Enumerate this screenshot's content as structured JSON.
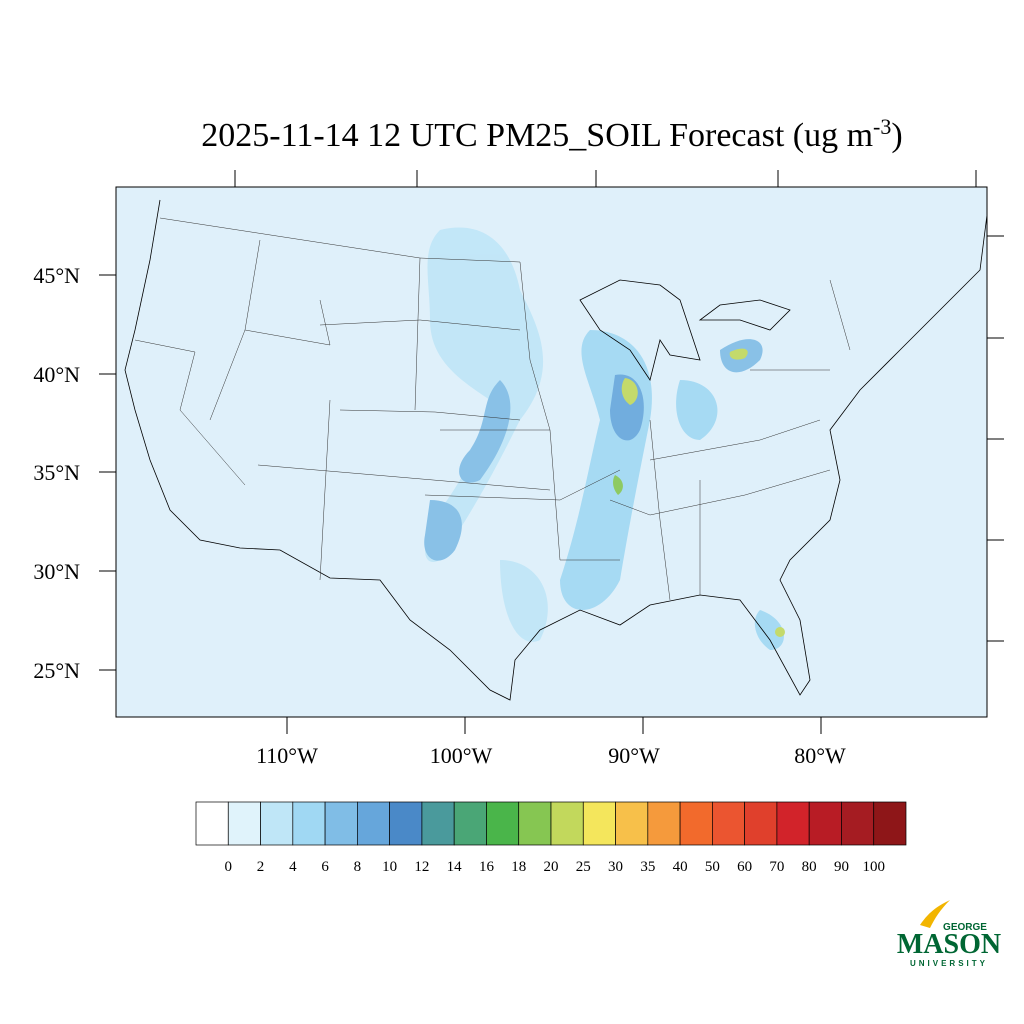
{
  "title": {
    "main": "2025-11-14 12 UTC PM25_SOIL Forecast (ug m",
    "superscript": "-3",
    "close": ")"
  },
  "map": {
    "lat_labels": [
      "45°N",
      "40°N",
      "35°N",
      "30°N",
      "25°N"
    ],
    "lon_labels": [
      "110°W",
      "100°W",
      "90°W",
      "80°W"
    ]
  },
  "colorbar": {
    "levels": [
      0,
      2,
      4,
      6,
      8,
      10,
      12,
      14,
      16,
      18,
      20,
      25,
      30,
      35,
      40,
      50,
      60,
      70,
      80,
      90,
      100
    ],
    "colors": [
      "#ffffff",
      "#e0f3fb",
      "#bfe6f7",
      "#a0d8f3",
      "#80bde6",
      "#66a6db",
      "#4a89c8",
      "#4a9a9c",
      "#4aa676",
      "#4ab54a",
      "#86c652",
      "#c2d85c",
      "#f4e65c",
      "#f7c04a",
      "#f59a3c",
      "#f26a2c",
      "#eb5530",
      "#e0402c",
      "#d2232a",
      "#b81c25",
      "#a51c22",
      "#8e1618"
    ]
  },
  "logo": {
    "top": "GEORGE",
    "middle": "MASON",
    "bottom": "UNIVERSITY"
  }
}
